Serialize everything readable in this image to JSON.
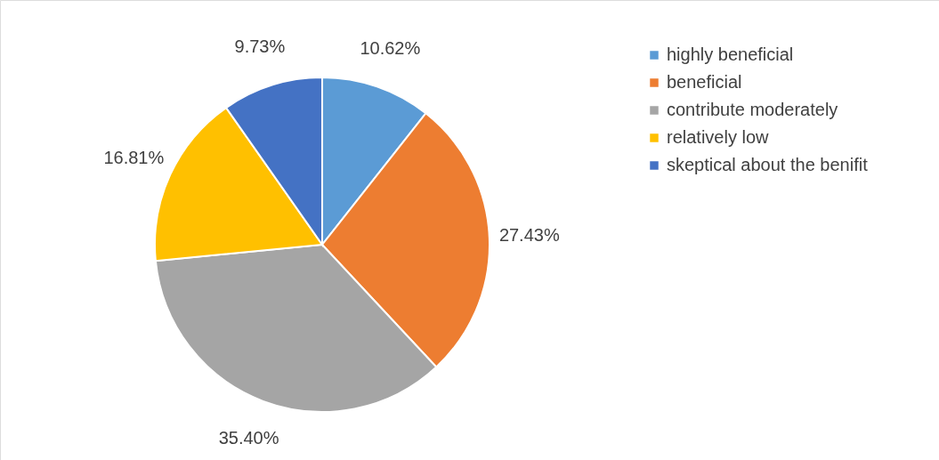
{
  "chart_data": {
    "type": "pie",
    "categories": [
      "highly beneficial",
      "beneficial",
      "contribute moderately",
      "relatively low",
      "skeptical about the benifit"
    ],
    "values": [
      10.62,
      27.43,
      35.4,
      16.81,
      9.73
    ],
    "colors": [
      "#5b9bd5",
      "#ed7d31",
      "#a5a5a5",
      "#ffc000",
      "#4472c4"
    ],
    "value_labels": [
      "10.62%",
      "27.43%",
      "35.40%",
      "16.81%",
      "9.73%"
    ],
    "legend": "right"
  }
}
